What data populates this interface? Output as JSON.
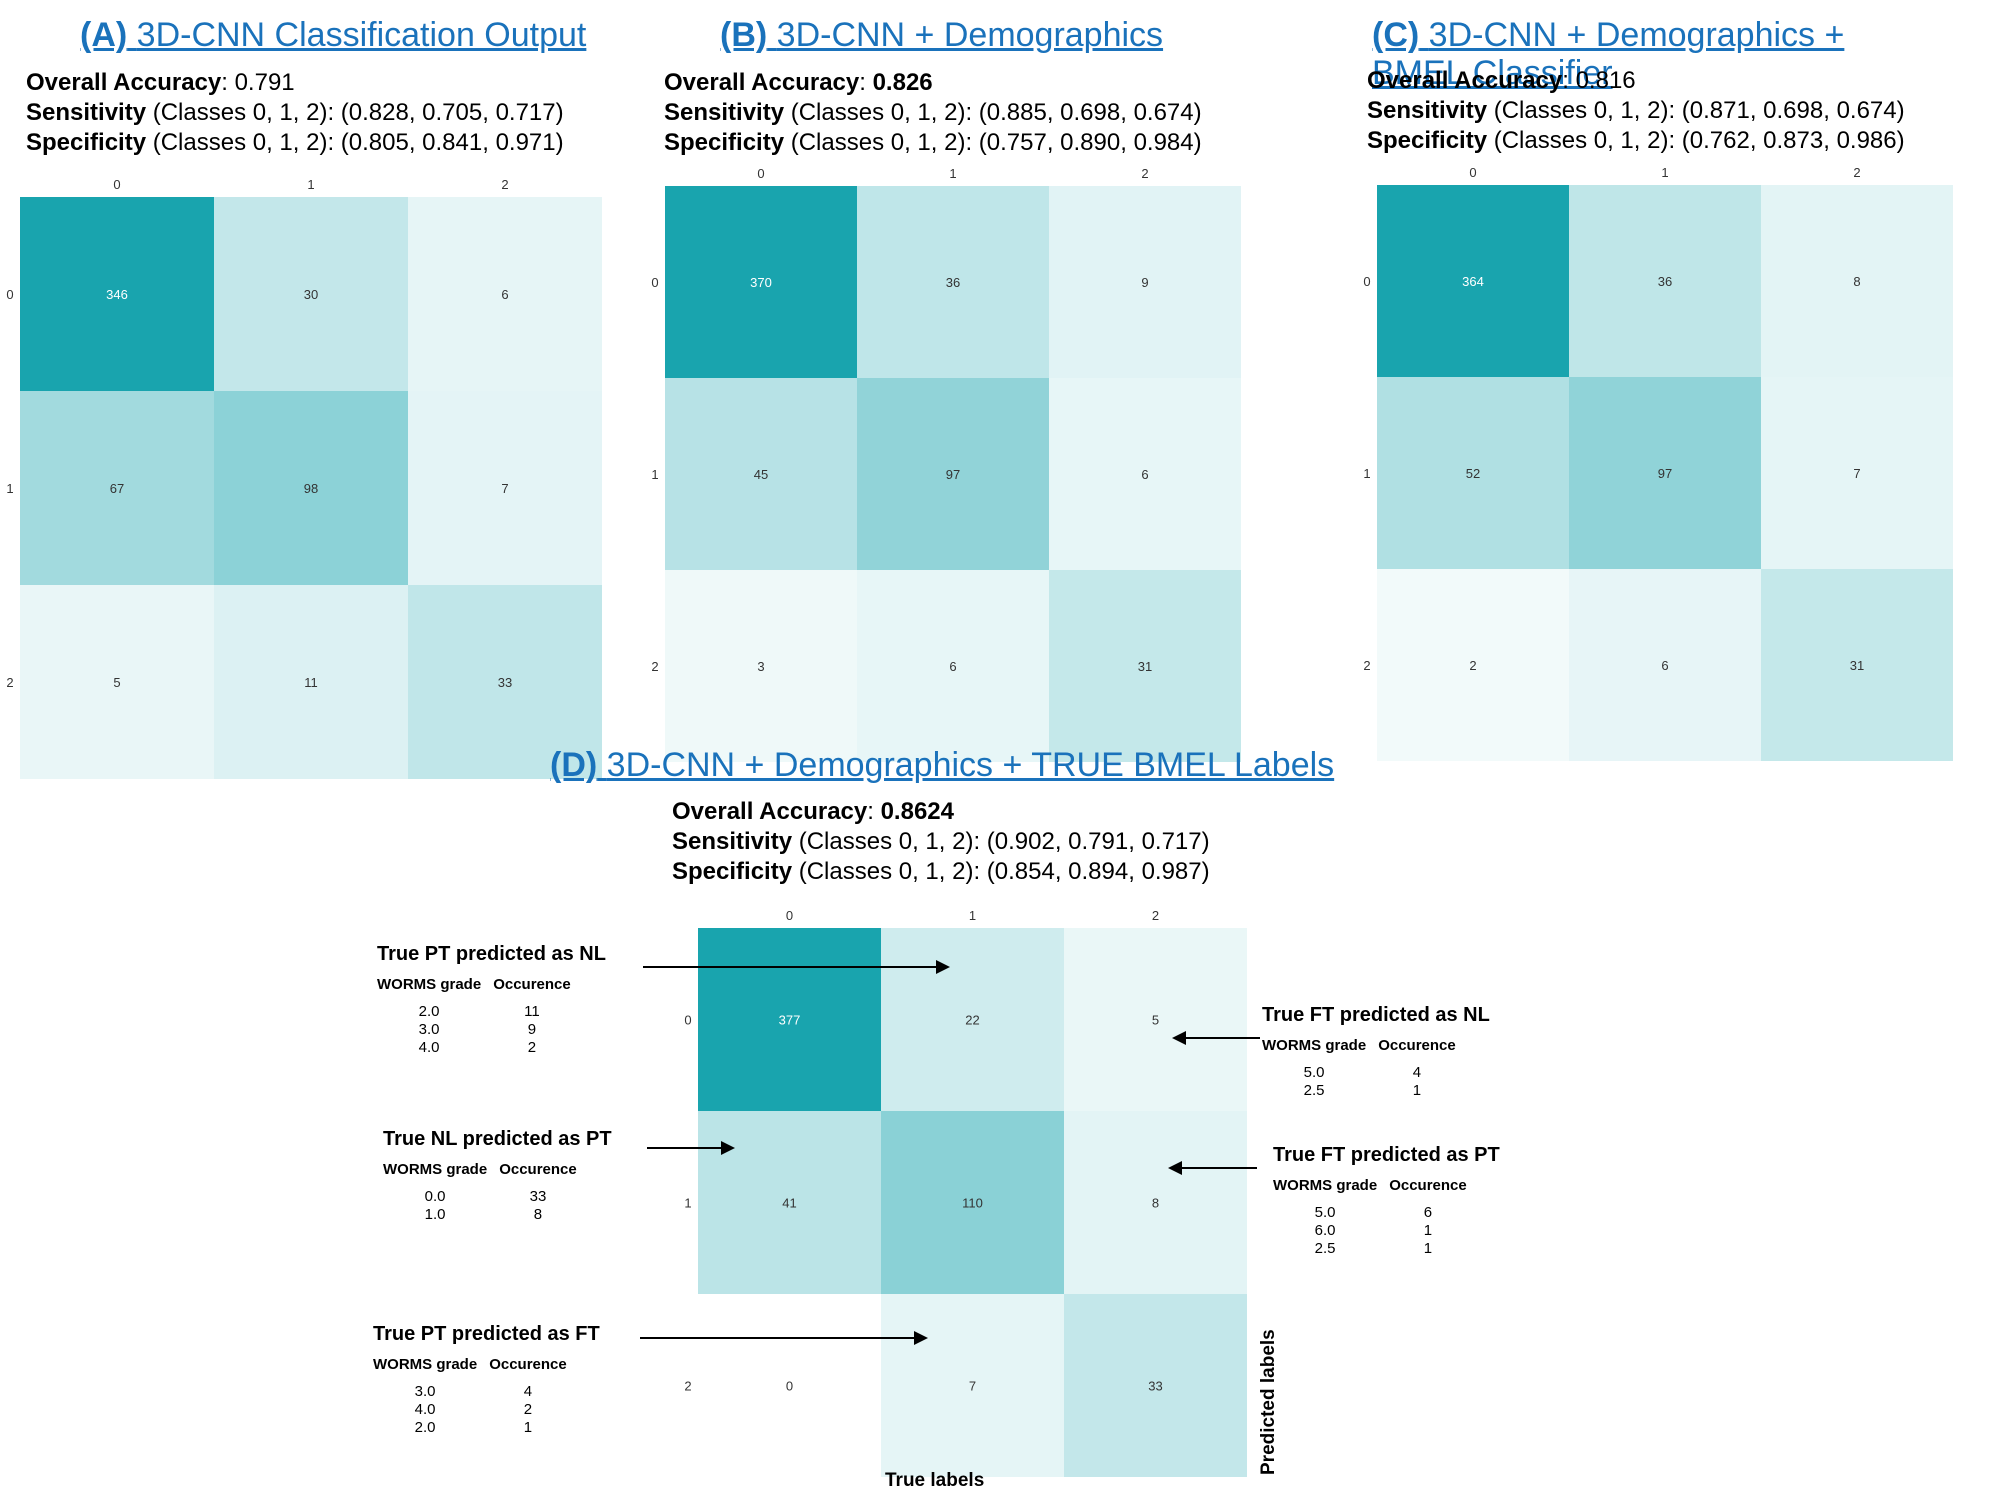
{
  "colors": {
    "title": "#1a72bb",
    "heat_max": "#19a4ae",
    "heat_min": "#ffffff"
  },
  "panels": [
    {
      "id": "A",
      "label": "(A)",
      "title": "3D-CNN Classification Output",
      "accuracy_label": "Overall Accuracy",
      "accuracy": "0.791",
      "sensitivity_label": "Sensitivity",
      "sensitivity_text": "(Classes 0, 1, 2): (0.828, 0.705, 0.717)",
      "specificity_label": "Specificity",
      "specificity_text": "(Classes 0, 1, 2): (0.805, 0.841, 0.971)"
    },
    {
      "id": "B",
      "label": "(B)",
      "title": "3D-CNN + Demographics",
      "accuracy_label": "Overall Accuracy",
      "accuracy": "0.826",
      "sensitivity_label": "Sensitivity",
      "sensitivity_text": "(Classes 0, 1, 2): (0.885, 0.698, 0.674)",
      "specificity_label": "Specificity",
      "specificity_text": "(Classes 0, 1, 2): (0.757, 0.890, 0.984)"
    },
    {
      "id": "C",
      "label": "(C)",
      "title": "3D-CNN + Demographics + BMEL Classifier",
      "accuracy_label": "Overall Accuracy",
      "accuracy": "0.816",
      "sensitivity_label": "Sensitivity",
      "sensitivity_text": "(Classes 0, 1, 2): (0.871, 0.698, 0.674)",
      "specificity_label": "Specificity",
      "specificity_text": "(Classes 0, 1, 2): (0.762, 0.873, 0.986)"
    },
    {
      "id": "D",
      "label": "(D)",
      "title": "3D-CNN + Demographics + TRUE BMEL Labels",
      "accuracy_label": "Overall Accuracy",
      "accuracy": "0.8624",
      "sensitivity_label": "Sensitivity",
      "sensitivity_text": "(Classes 0, 1, 2): (0.902, 0.791, 0.717)",
      "specificity_label": "Specificity",
      "specificity_text": "(Classes 0, 1, 2): (0.854, 0.894, 0.987)"
    }
  ],
  "chart_data": [
    {
      "type": "heatmap",
      "panel": "A",
      "title": "3D-CNN Classification Output",
      "row_labels": [
        "0",
        "1",
        "2"
      ],
      "col_labels": [
        "0",
        "1",
        "2"
      ],
      "xlabel": "",
      "ylabel": "",
      "values": [
        [
          346,
          30,
          6
        ],
        [
          67,
          98,
          7
        ],
        [
          5,
          11,
          33
        ]
      ]
    },
    {
      "type": "heatmap",
      "panel": "B",
      "title": "3D-CNN + Demographics",
      "row_labels": [
        "0",
        "1",
        "2"
      ],
      "col_labels": [
        "0",
        "1",
        "2"
      ],
      "xlabel": "",
      "ylabel": "",
      "values": [
        [
          370,
          36,
          9
        ],
        [
          45,
          97,
          6
        ],
        [
          3,
          6,
          31
        ]
      ]
    },
    {
      "type": "heatmap",
      "panel": "C",
      "title": "3D-CNN + Demographics + BMEL Classifier",
      "row_labels": [
        "0",
        "1",
        "2"
      ],
      "col_labels": [
        "0",
        "1",
        "2"
      ],
      "xlabel": "",
      "ylabel": "",
      "values": [
        [
          364,
          36,
          8
        ],
        [
          52,
          97,
          7
        ],
        [
          2,
          6,
          31
        ]
      ]
    },
    {
      "type": "heatmap",
      "panel": "D",
      "title": "3D-CNN + Demographics + TRUE BMEL Labels",
      "row_labels": [
        "0",
        "1",
        "2"
      ],
      "col_labels": [
        "0",
        "1",
        "2"
      ],
      "xlabel": "True labels",
      "ylabel": "Predicted labels",
      "values": [
        [
          377,
          22,
          5
        ],
        [
          41,
          110,
          8
        ],
        [
          0,
          7,
          33
        ]
      ]
    }
  ],
  "axis_labels": {
    "x": "True labels",
    "y": "Predicted labels"
  },
  "callouts": [
    {
      "id": "pt-nl",
      "title": "True PT predicted as NL",
      "col1": "WORMS grade",
      "col2": "Occurence",
      "rows": [
        [
          "2.0",
          "11"
        ],
        [
          "3.0",
          "9"
        ],
        [
          "4.0",
          "2"
        ]
      ]
    },
    {
      "id": "nl-pt",
      "title": "True NL predicted as PT",
      "col1": "WORMS grade",
      "col2": "Occurence",
      "rows": [
        [
          "0.0",
          "33"
        ],
        [
          "1.0",
          "8"
        ]
      ]
    },
    {
      "id": "pt-ft",
      "title": "True PT predicted as FT",
      "col1": "WORMS grade",
      "col2": "Occurence",
      "rows": [
        [
          "3.0",
          "4"
        ],
        [
          "4.0",
          "2"
        ],
        [
          "2.0",
          "1"
        ]
      ]
    },
    {
      "id": "ft-nl",
      "title": "True FT predicted as NL",
      "col1": "WORMS grade",
      "col2": "Occurence",
      "rows": [
        [
          "5.0",
          "4"
        ],
        [
          "2.5",
          "1"
        ]
      ]
    },
    {
      "id": "ft-pt",
      "title": "True FT predicted as PT",
      "col1": "WORMS grade",
      "col2": "Occurence",
      "rows": [
        [
          "5.0",
          "6"
        ],
        [
          "6.0",
          "1"
        ],
        [
          "2.5",
          "1"
        ]
      ]
    }
  ]
}
